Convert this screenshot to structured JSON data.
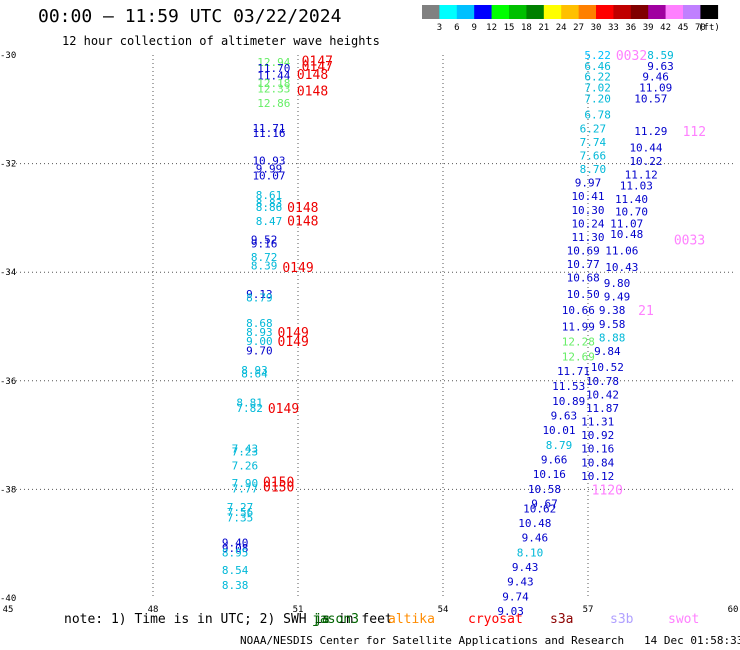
{
  "header": {
    "title": "00:00 – 11:59 UTC 03/22/2024",
    "subtitle": "12 hour collection of altimeter wave heights"
  },
  "scale": {
    "labels": [
      "3",
      "6",
      "9",
      "12",
      "15",
      "18",
      "21",
      "24",
      "27",
      "30",
      "33",
      "36",
      "39",
      "42",
      "45",
      "70"
    ],
    "unit": "(ft)",
    "colors": [
      "#808080",
      "#00ffff",
      "#00c0ff",
      "#0000ff",
      "#00ff00",
      "#00c000",
      "#008000",
      "#ffff00",
      "#ffc000",
      "#ff8000",
      "#ff0000",
      "#c00000",
      "#800000",
      "#a000a0",
      "#ff80ff",
      "#c080ff",
      "#000000"
    ]
  },
  "legend": {
    "note": "note: 1) Time is in UTC; 2) SWH is in feet",
    "satellites": [
      {
        "name": "jason3",
        "color": "#006400"
      },
      {
        "name": "altika",
        "color": "#ff8c00"
      },
      {
        "name": "cryosat",
        "color": "#ff0000"
      },
      {
        "name": "s3a",
        "color": "#8b0000"
      },
      {
        "name": "s3b",
        "color": "#b0a0ff"
      },
      {
        "name": "swot",
        "color": "#ff80ff"
      }
    ],
    "overlap": "ja"
  },
  "footer": {
    "credit": "NOAA/NESDIS Center for Satellite Applications and Research",
    "timestamp": "14 Dec 01:58:33 UTC 2024"
  },
  "chart_data": {
    "type": "scatter",
    "title": "00:00 – 11:59 UTC 03/22/2024",
    "subtitle": "12 hour collection of altimeter wave heights",
    "xlim": [
      45,
      60
    ],
    "ylim": [
      -40,
      -30
    ],
    "x_ticks": [
      "45",
      "48",
      "51",
      "54",
      "57",
      "60"
    ],
    "y_ticks": [
      "-30",
      "-32",
      "-34",
      "-36",
      "-38",
      "-40"
    ],
    "grid": true,
    "series": [
      {
        "name": "cryosat",
        "points": [
          {
            "x": 50.5,
            "y": -30.13,
            "label": "12.94",
            "color": "#66ee66"
          },
          {
            "x": 50.5,
            "y": -30.24,
            "label": "11.70",
            "color": "#0000cc"
          },
          {
            "x": 50.5,
            "y": -30.38,
            "label": "11.44",
            "color": "#0000cc"
          },
          {
            "x": 50.5,
            "y": -30.52,
            "label": "12.18",
            "color": "#66ee66"
          },
          {
            "x": 50.5,
            "y": -30.62,
            "label": "12.33",
            "color": "#66ee66"
          },
          {
            "x": 50.5,
            "y": -30.88,
            "label": "12.86",
            "color": "#66ee66"
          },
          {
            "x": 50.4,
            "y": -31.34,
            "label": "11.71",
            "color": "#0000cc"
          },
          {
            "x": 50.4,
            "y": -31.44,
            "label": "11.16",
            "color": "#0000cc"
          },
          {
            "x": 50.4,
            "y": -31.94,
            "label": "10.93",
            "color": "#0000cc"
          },
          {
            "x": 50.4,
            "y": -32.09,
            "label": "9.99",
            "color": "#0000cc"
          },
          {
            "x": 50.4,
            "y": -32.22,
            "label": "10.07",
            "color": "#0000cc"
          },
          {
            "x": 50.4,
            "y": -32.58,
            "label": "8.61",
            "color": "#00b8d8"
          },
          {
            "x": 50.4,
            "y": -32.73,
            "label": "8.83",
            "color": "#00b8d8"
          },
          {
            "x": 50.4,
            "y": -32.8,
            "label": "8.86",
            "color": "#00b8d8"
          },
          {
            "x": 50.4,
            "y": -33.06,
            "label": "8.47",
            "color": "#00b8d8"
          },
          {
            "x": 50.3,
            "y": -33.4,
            "label": "9.52",
            "color": "#0000cc"
          },
          {
            "x": 50.3,
            "y": -33.47,
            "label": "9.16",
            "color": "#0000cc"
          },
          {
            "x": 50.3,
            "y": -33.72,
            "label": "8.72",
            "color": "#00b8d8"
          },
          {
            "x": 50.3,
            "y": -33.88,
            "label": "8.39",
            "color": "#00b8d8"
          },
          {
            "x": 50.2,
            "y": -34.4,
            "label": "9.13",
            "color": "#0000cc"
          },
          {
            "x": 50.2,
            "y": -34.47,
            "label": "8.79",
            "color": "#00b8d8"
          },
          {
            "x": 50.2,
            "y": -34.94,
            "label": "8.68",
            "color": "#00b8d8"
          },
          {
            "x": 50.2,
            "y": -35.1,
            "label": "8.93",
            "color": "#00b8d8"
          },
          {
            "x": 50.2,
            "y": -35.27,
            "label": "9.00",
            "color": "#00b8d8"
          },
          {
            "x": 50.2,
            "y": -35.44,
            "label": "9.70",
            "color": "#0000cc"
          },
          {
            "x": 50.1,
            "y": -35.8,
            "label": "8.93",
            "color": "#00b8d8"
          },
          {
            "x": 50.1,
            "y": -35.87,
            "label": "8.64",
            "color": "#00b8d8"
          },
          {
            "x": 50.0,
            "y": -36.4,
            "label": "8.81",
            "color": "#00b8d8"
          },
          {
            "x": 50.0,
            "y": -36.5,
            "label": "7.82",
            "color": "#00b8d8"
          },
          {
            "x": 49.9,
            "y": -37.25,
            "label": "7.43",
            "color": "#00b8d8"
          },
          {
            "x": 49.9,
            "y": -37.3,
            "label": "7.23",
            "color": "#00b8d8"
          },
          {
            "x": 49.9,
            "y": -37.56,
            "label": "7.26",
            "color": "#00b8d8"
          },
          {
            "x": 49.9,
            "y": -37.88,
            "label": "7.90",
            "color": "#00b8d8"
          },
          {
            "x": 49.9,
            "y": -37.98,
            "label": "7.77",
            "color": "#00b8d8"
          },
          {
            "x": 49.8,
            "y": -38.32,
            "label": "7.27",
            "color": "#00b8d8"
          },
          {
            "x": 49.8,
            "y": -38.42,
            "label": "7.56",
            "color": "#00b8d8"
          },
          {
            "x": 49.8,
            "y": -38.52,
            "label": "7.35",
            "color": "#00b8d8"
          },
          {
            "x": 49.7,
            "y": -38.98,
            "label": "9.40",
            "color": "#0000cc"
          },
          {
            "x": 49.7,
            "y": -39.08,
            "label": "9.08",
            "color": "#0000cc"
          },
          {
            "x": 49.7,
            "y": -39.16,
            "label": "8.95",
            "color": "#00b8d8"
          },
          {
            "x": 49.7,
            "y": -39.48,
            "label": "8.54",
            "color": "#00b8d8"
          },
          {
            "x": 49.7,
            "y": -39.76,
            "label": "8.38",
            "color": "#00b8d8"
          }
        ]
      },
      {
        "name": "s3a",
        "points": [
          {
            "x": 58.5,
            "y": -30.0,
            "label": "8.59",
            "color": "#00b8d8"
          },
          {
            "x": 58.5,
            "y": -30.2,
            "label": "9.63",
            "color": "#0000cc"
          },
          {
            "x": 58.4,
            "y": -30.4,
            "label": "9.46",
            "color": "#0000cc"
          },
          {
            "x": 58.4,
            "y": -30.6,
            "label": "11.09",
            "color": "#0000cc"
          },
          {
            "x": 58.3,
            "y": -30.8,
            "label": "10.57",
            "color": "#0000cc"
          },
          {
            "x": 58.3,
            "y": -31.4,
            "label": "11.29",
            "color": "#0000cc"
          },
          {
            "x": 58.2,
            "y": -31.7,
            "label": "10.44",
            "color": "#0000cc"
          },
          {
            "x": 58.2,
            "y": -31.95,
            "label": "10.22",
            "color": "#0000cc"
          },
          {
            "x": 58.1,
            "y": -32.2,
            "label": "11.12",
            "color": "#0000cc"
          },
          {
            "x": 58.0,
            "y": -32.4,
            "label": "11.03",
            "color": "#0000cc"
          },
          {
            "x": 57.9,
            "y": -32.65,
            "label": "11.40",
            "color": "#0000cc"
          },
          {
            "x": 57.9,
            "y": -32.88,
            "label": "10.70",
            "color": "#0000cc"
          },
          {
            "x": 57.8,
            "y": -33.1,
            "label": "11.07",
            "color": "#0000cc"
          },
          {
            "x": 57.8,
            "y": -33.3,
            "label": "10.48",
            "color": "#0000cc"
          },
          {
            "x": 57.7,
            "y": -33.6,
            "label": "11.06",
            "color": "#0000cc"
          },
          {
            "x": 57.7,
            "y": -33.9,
            "label": "10.43",
            "color": "#0000cc"
          },
          {
            "x": 57.6,
            "y": -34.2,
            "label": "9.80",
            "color": "#0000cc"
          },
          {
            "x": 57.6,
            "y": -34.45,
            "label": "9.49",
            "color": "#0000cc"
          },
          {
            "x": 57.5,
            "y": -34.7,
            "label": "9.38",
            "color": "#0000cc"
          },
          {
            "x": 57.5,
            "y": -34.95,
            "label": "9.58",
            "color": "#0000cc"
          },
          {
            "x": 57.5,
            "y": -35.2,
            "label": "8.88",
            "color": "#00b8d8"
          },
          {
            "x": 57.4,
            "y": -35.45,
            "label": "9.84",
            "color": "#0000cc"
          },
          {
            "x": 57.4,
            "y": -35.75,
            "label": "10.52",
            "color": "#0000cc"
          },
          {
            "x": 57.3,
            "y": -36.0,
            "label": "10.78",
            "color": "#0000cc"
          },
          {
            "x": 57.3,
            "y": -36.25,
            "label": "10.42",
            "color": "#0000cc"
          },
          {
            "x": 57.3,
            "y": -36.5,
            "label": "11.87",
            "color": "#0000cc"
          },
          {
            "x": 57.2,
            "y": -36.75,
            "label": "11.31",
            "color": "#0000cc"
          },
          {
            "x": 57.2,
            "y": -37.0,
            "label": "10.92",
            "color": "#0000cc"
          },
          {
            "x": 57.2,
            "y": -37.25,
            "label": "10.16",
            "color": "#0000cc"
          },
          {
            "x": 57.2,
            "y": -37.5,
            "label": "10.84",
            "color": "#0000cc"
          },
          {
            "x": 57.2,
            "y": -37.75,
            "label": "10.12",
            "color": "#0000cc"
          }
        ]
      },
      {
        "name": "s3b",
        "points": [
          {
            "x": 57.2,
            "y": -30.0,
            "label": "5.22",
            "color": "#00c0ff"
          },
          {
            "x": 57.2,
            "y": -30.2,
            "label": "6.46",
            "color": "#00b8d8"
          },
          {
            "x": 57.2,
            "y": -30.4,
            "label": "6.22",
            "color": "#00b8d8"
          },
          {
            "x": 57.2,
            "y": -30.6,
            "label": "7.02",
            "color": "#00b8d8"
          },
          {
            "x": 57.2,
            "y": -30.8,
            "label": "7.20",
            "color": "#00b8d8"
          },
          {
            "x": 57.2,
            "y": -31.1,
            "label": "6.78",
            "color": "#00b8d8"
          },
          {
            "x": 57.1,
            "y": -31.35,
            "label": "6.27",
            "color": "#00b8d8"
          },
          {
            "x": 57.1,
            "y": -31.6,
            "label": "7.74",
            "color": "#00b8d8"
          },
          {
            "x": 57.1,
            "y": -31.85,
            "label": "7.66",
            "color": "#00b8d8"
          },
          {
            "x": 57.1,
            "y": -32.1,
            "label": "8.70",
            "color": "#00b8d8"
          },
          {
            "x": 57.0,
            "y": -32.35,
            "label": "9.97",
            "color": "#0000cc"
          },
          {
            "x": 57.0,
            "y": -32.6,
            "label": "10.41",
            "color": "#0000cc"
          },
          {
            "x": 57.0,
            "y": -32.85,
            "label": "10.30",
            "color": "#0000cc"
          },
          {
            "x": 57.0,
            "y": -33.1,
            "label": "10.24",
            "color": "#0000cc"
          },
          {
            "x": 57.0,
            "y": -33.35,
            "label": "11.30",
            "color": "#0000cc"
          },
          {
            "x": 56.9,
            "y": -33.6,
            "label": "10.69",
            "color": "#0000cc"
          },
          {
            "x": 56.9,
            "y": -33.85,
            "label": "10.77",
            "color": "#0000cc"
          },
          {
            "x": 56.9,
            "y": -34.1,
            "label": "10.68",
            "color": "#0000cc"
          },
          {
            "x": 56.9,
            "y": -34.4,
            "label": "10.50",
            "color": "#0000cc"
          },
          {
            "x": 56.8,
            "y": -34.7,
            "label": "10.66",
            "color": "#0000cc"
          },
          {
            "x": 56.8,
            "y": -35.0,
            "label": "11.99",
            "color": "#0000cc"
          },
          {
            "x": 56.8,
            "y": -35.28,
            "label": "12.28",
            "color": "#66ee66"
          },
          {
            "x": 56.8,
            "y": -35.55,
            "label": "12.69",
            "color": "#66ee66"
          },
          {
            "x": 56.7,
            "y": -35.82,
            "label": "11.71",
            "color": "#0000cc"
          },
          {
            "x": 56.6,
            "y": -36.1,
            "label": "11.53",
            "color": "#0000cc"
          },
          {
            "x": 56.6,
            "y": -36.37,
            "label": "10.89",
            "color": "#0000cc"
          },
          {
            "x": 56.5,
            "y": -36.64,
            "label": "9.63",
            "color": "#0000cc"
          },
          {
            "x": 56.4,
            "y": -36.91,
            "label": "10.01",
            "color": "#0000cc"
          },
          {
            "x": 56.4,
            "y": -37.18,
            "label": "8.79",
            "color": "#00b8d8"
          },
          {
            "x": 56.3,
            "y": -37.45,
            "label": "9.66",
            "color": "#0000cc"
          },
          {
            "x": 56.2,
            "y": -37.72,
            "label": "10.16",
            "color": "#0000cc"
          },
          {
            "x": 56.1,
            "y": -37.99,
            "label": "10.58",
            "color": "#0000cc"
          },
          {
            "x": 56.1,
            "y": -38.26,
            "label": "9.67",
            "color": "#0000cc"
          },
          {
            "x": 56.0,
            "y": -38.35,
            "label": "10.62",
            "color": "#0000cc"
          },
          {
            "x": 55.9,
            "y": -38.62,
            "label": "10.48",
            "color": "#0000cc"
          },
          {
            "x": 55.9,
            "y": -38.89,
            "label": "9.46",
            "color": "#0000cc"
          },
          {
            "x": 55.8,
            "y": -39.16,
            "label": "8.10",
            "color": "#00b8d8"
          },
          {
            "x": 55.7,
            "y": -39.43,
            "label": "9.43",
            "color": "#0000cc"
          },
          {
            "x": 55.6,
            "y": -39.7,
            "label": "9.43",
            "color": "#0000cc"
          },
          {
            "x": 55.5,
            "y": -39.97,
            "label": "9.74",
            "color": "#0000cc"
          },
          {
            "x": 55.4,
            "y": -40.24,
            "label": "9.03",
            "color": "#0000cc"
          }
        ]
      }
    ],
    "passes": [
      {
        "x": 51.4,
        "y": -30.1,
        "label": "0147",
        "color": "#ee0000"
      },
      {
        "x": 51.4,
        "y": -30.2,
        "label": "0147",
        "color": "#ee0000"
      },
      {
        "x": 51.3,
        "y": -30.35,
        "label": "0148",
        "color": "#ee0000"
      },
      {
        "x": 51.3,
        "y": -30.65,
        "label": "0148",
        "color": "#ee0000"
      },
      {
        "x": 51.1,
        "y": -32.8,
        "label": "0148",
        "color": "#ee0000"
      },
      {
        "x": 51.1,
        "y": -33.05,
        "label": "0148",
        "color": "#ee0000"
      },
      {
        "x": 51.0,
        "y": -33.9,
        "label": "0149",
        "color": "#ee0000"
      },
      {
        "x": 50.9,
        "y": -35.1,
        "label": "0149",
        "color": "#ee0000"
      },
      {
        "x": 50.9,
        "y": -35.27,
        "label": "0149",
        "color": "#ee0000"
      },
      {
        "x": 50.7,
        "y": -36.5,
        "label": "0149",
        "color": "#ee0000"
      },
      {
        "x": 50.6,
        "y": -37.85,
        "label": "0150",
        "color": "#ee0000"
      },
      {
        "x": 50.6,
        "y": -37.95,
        "label": "0150",
        "color": "#ee0000"
      },
      {
        "x": 57.9,
        "y": -30.0,
        "label": "0032",
        "color": "#ff80ff"
      },
      {
        "x": 59.2,
        "y": -31.4,
        "label": "112",
        "color": "#ff80ff"
      },
      {
        "x": 59.1,
        "y": -33.4,
        "label": "0033",
        "color": "#ff80ff"
      },
      {
        "x": 58.2,
        "y": -34.7,
        "label": "21",
        "color": "#ff80ff"
      },
      {
        "x": 57.4,
        "y": -38.0,
        "label": "1120",
        "color": "#ff80ff"
      }
    ]
  }
}
